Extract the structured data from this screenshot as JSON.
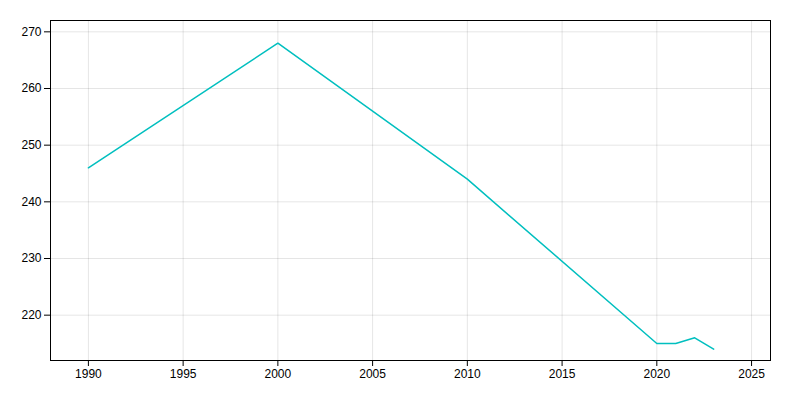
{
  "chart_data": {
    "type": "line",
    "x": [
      1990,
      2000,
      2010,
      2020,
      2021,
      2022,
      2023
    ],
    "values": [
      246,
      268,
      244,
      215,
      215,
      216,
      214
    ],
    "color": "#00BFBF",
    "xlim": [
      1988,
      2026
    ],
    "ylim": [
      212,
      272
    ],
    "xticks": [
      1990,
      1995,
      2000,
      2005,
      2010,
      2015,
      2020,
      2025
    ],
    "yticks": [
      220,
      230,
      240,
      250,
      260,
      270
    ],
    "grid": true
  }
}
